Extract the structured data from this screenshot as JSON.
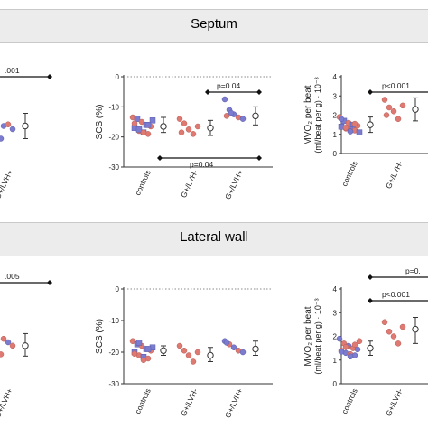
{
  "sections": [
    {
      "title": "Septum"
    },
    {
      "title": "Lateral wall"
    }
  ],
  "colors": {
    "blue": "#7b7ccf",
    "red": "#df7a72",
    "open": "#ffffff",
    "ink": "#222222"
  },
  "chart_data": [
    {
      "type": "scatter",
      "section": "Septum",
      "title": "",
      "ylabel": "",
      "categories": [
        "",
        "G+/LVH+"
      ],
      "clipped_left": true,
      "ylim": [
        0,
        3
      ],
      "annotations": [
        {
          "text": ".001"
        }
      ],
      "series": [
        {
          "group": "G+/LVH-",
          "points": [
            {
              "y": 1.6,
              "c": "red"
            },
            {
              "y": 1.3,
              "c": "blue"
            }
          ]
        },
        {
          "group": "G+/LVH+",
          "points": [
            {
              "y": 1.6,
              "c": "red"
            },
            {
              "y": 1.55,
              "c": "blue"
            },
            {
              "y": 1.3,
              "c": "blue"
            },
            {
              "y": 1.35,
              "c": "red"
            },
            {
              "y": 1.2,
              "c": "blue"
            },
            {
              "y": 1.0,
              "c": "red"
            },
            {
              "y": 0.9,
              "c": "blue"
            }
          ]
        }
      ],
      "summary": [
        {
          "group": "G+/LVH-",
          "mean": 1.3,
          "lo": 0.8,
          "hi": 1.8
        },
        {
          "group": "G+/LVH+",
          "mean": 1.3,
          "lo": 0.9,
          "hi": 1.7
        }
      ]
    },
    {
      "type": "scatter",
      "section": "Septum",
      "title": "",
      "ylabel": "SCS (%)",
      "categories": [
        "controls",
        "G+/LVH-",
        "G+/LVH+"
      ],
      "yticks": [
        "0",
        "-10",
        "-20",
        "-30"
      ],
      "ylim": [
        -30,
        0
      ],
      "annotations": [
        {
          "text": "p=0.04"
        },
        {
          "text": "p=0.04"
        }
      ],
      "series": [
        {
          "group": "controls",
          "points": [
            {
              "y": -13.5,
              "c": "red"
            },
            {
              "y": -14.0,
              "c": "blue"
            },
            {
              "y": -15.0,
              "c": "red"
            },
            {
              "y": -16.0,
              "c": "blue"
            },
            {
              "y": -16.5,
              "c": "red"
            },
            {
              "y": -17.0,
              "c": "blue"
            },
            {
              "y": -18.0,
              "c": "red"
            },
            {
              "y": -18.5,
              "c": "blue"
            },
            {
              "y": -19.0,
              "c": "red"
            },
            {
              "y": -14.5,
              "c": "blue"
            },
            {
              "y": -15.5,
              "c": "red"
            },
            {
              "y": -17.5,
              "c": "blue"
            },
            {
              "y": -18.5,
              "c": "red"
            },
            {
              "y": -16.0,
              "c": "blue"
            }
          ]
        },
        {
          "group": "G+/LVH-",
          "points": [
            {
              "y": -14.0,
              "c": "red"
            },
            {
              "y": -15.5,
              "c": "red"
            },
            {
              "y": -17.5,
              "c": "red"
            },
            {
              "y": -19.0,
              "c": "red"
            },
            {
              "y": -16.5,
              "c": "red"
            },
            {
              "y": -18.5,
              "c": "red"
            }
          ]
        },
        {
          "group": "G+/LVH+",
          "points": [
            {
              "y": -7.5,
              "c": "blue"
            },
            {
              "y": -11.0,
              "c": "blue"
            },
            {
              "y": -12.5,
              "c": "blue"
            },
            {
              "y": -13.5,
              "c": "red"
            },
            {
              "y": -14.0,
              "c": "blue"
            },
            {
              "y": -13.0,
              "c": "red"
            },
            {
              "y": -12.0,
              "c": "blue"
            }
          ]
        }
      ],
      "summary": [
        {
          "group": "controls",
          "mean": -16.5,
          "lo": -18.5,
          "hi": -13.5
        },
        {
          "group": "G+/LVH-",
          "mean": -17.0,
          "lo": -19.5,
          "hi": -14.5
        },
        {
          "group": "G+/LVH+",
          "mean": -13.0,
          "lo": -16.0,
          "hi": -10.0
        }
      ]
    },
    {
      "type": "scatter",
      "section": "Septum",
      "title": "",
      "ylabel": "MVO₂ per beat",
      "ylabel2": "(ml/beat per g) · 10⁻³",
      "categories": [
        "controls",
        "G+/LVH-",
        "G+/LVH+"
      ],
      "clipped_right": true,
      "yticks": [
        "0",
        "1",
        "2",
        "3",
        "4"
      ],
      "ylim": [
        0,
        4
      ],
      "annotations": [
        {
          "text": "p<0.001"
        }
      ],
      "series": [
        {
          "group": "controls",
          "points": [
            {
              "y": 1.9,
              "c": "red"
            },
            {
              "y": 1.7,
              "c": "blue"
            },
            {
              "y": 1.6,
              "c": "red"
            },
            {
              "y": 1.5,
              "c": "blue"
            },
            {
              "y": 1.45,
              "c": "red"
            },
            {
              "y": 1.4,
              "c": "blue"
            },
            {
              "y": 1.3,
              "c": "red"
            },
            {
              "y": 1.25,
              "c": "blue"
            },
            {
              "y": 1.2,
              "c": "red"
            },
            {
              "y": 1.1,
              "c": "blue"
            },
            {
              "y": 1.8,
              "c": "blue"
            },
            {
              "y": 1.35,
              "c": "red"
            },
            {
              "y": 1.15,
              "c": "blue"
            },
            {
              "y": 1.55,
              "c": "red"
            }
          ]
        },
        {
          "group": "G+/LVH-",
          "points": [
            {
              "y": 2.8,
              "c": "red"
            },
            {
              "y": 2.4,
              "c": "red"
            },
            {
              "y": 2.2,
              "c": "red"
            },
            {
              "y": 1.8,
              "c": "red"
            },
            {
              "y": 2.5,
              "c": "red"
            },
            {
              "y": 2.0,
              "c": "red"
            }
          ]
        },
        {
          "group": "G+/LVH+",
          "points": [
            {
              "y": 3.0,
              "c": "blue"
            }
          ]
        }
      ],
      "summary": [
        {
          "group": "controls",
          "mean": 1.5,
          "lo": 1.1,
          "hi": 1.9
        },
        {
          "group": "G+/LVH-",
          "mean": 2.3,
          "lo": 1.7,
          "hi": 2.9
        }
      ]
    },
    {
      "type": "scatter",
      "section": "Lateral wall",
      "title": "",
      "ylabel": "",
      "categories": [
        "",
        "G+/LVH+"
      ],
      "clipped_left": true,
      "ylim": [
        0,
        3
      ],
      "annotations": [
        {
          "text": ".005"
        }
      ],
      "series": [
        {
          "group": "G+/LVH-",
          "points": [
            {
              "y": 1.3,
              "c": "red"
            },
            {
              "y": 1.0,
              "c": "blue"
            }
          ]
        },
        {
          "group": "G+/LVH+",
          "points": [
            {
              "y": 1.5,
              "c": "red"
            },
            {
              "y": 1.45,
              "c": "blue"
            },
            {
              "y": 1.3,
              "c": "red"
            },
            {
              "y": 1.2,
              "c": "blue"
            },
            {
              "y": 1.1,
              "c": "red"
            },
            {
              "y": 1.0,
              "c": "blue"
            },
            {
              "y": 0.85,
              "c": "red"
            }
          ]
        }
      ],
      "summary": [
        {
          "group": "G+/LVH-",
          "mean": 1.1,
          "lo": 0.6,
          "hi": 1.5
        },
        {
          "group": "G+/LVH+",
          "mean": 1.1,
          "lo": 0.8,
          "hi": 1.45
        }
      ]
    },
    {
      "type": "scatter",
      "section": "Lateral wall",
      "title": "",
      "ylabel": "SCS (%)",
      "categories": [
        "controls",
        "G+/LVH-",
        "G+/LVH+"
      ],
      "yticks": [
        "0",
        "-10",
        "-20",
        "-30"
      ],
      "ylim": [
        -30,
        0
      ],
      "annotations": [],
      "series": [
        {
          "group": "controls",
          "points": [
            {
              "y": -16.5,
              "c": "red"
            },
            {
              "y": -17.5,
              "c": "blue"
            },
            {
              "y": -18.0,
              "c": "red"
            },
            {
              "y": -19.0,
              "c": "blue"
            },
            {
              "y": -19.5,
              "c": "red"
            },
            {
              "y": -20.0,
              "c": "blue"
            },
            {
              "y": -21.0,
              "c": "red"
            },
            {
              "y": -21.5,
              "c": "blue"
            },
            {
              "y": -22.0,
              "c": "red"
            },
            {
              "y": -18.5,
              "c": "blue"
            },
            {
              "y": -20.5,
              "c": "red"
            },
            {
              "y": -17.0,
              "c": "blue"
            },
            {
              "y": -22.5,
              "c": "red"
            },
            {
              "y": -19.0,
              "c": "blue"
            }
          ]
        },
        {
          "group": "G+/LVH-",
          "points": [
            {
              "y": -18.0,
              "c": "red"
            },
            {
              "y": -19.5,
              "c": "red"
            },
            {
              "y": -21.0,
              "c": "red"
            },
            {
              "y": -23.0,
              "c": "red"
            },
            {
              "y": -20.0,
              "c": "red"
            }
          ]
        },
        {
          "group": "G+/LVH+",
          "points": [
            {
              "y": -16.5,
              "c": "blue"
            },
            {
              "y": -17.5,
              "c": "red"
            },
            {
              "y": -18.5,
              "c": "blue"
            },
            {
              "y": -19.5,
              "c": "red"
            },
            {
              "y": -20.0,
              "c": "blue"
            },
            {
              "y": -17.0,
              "c": "blue"
            }
          ]
        }
      ],
      "summary": [
        {
          "group": "controls",
          "mean": -19.5,
          "lo": -21.0,
          "hi": -18.0
        },
        {
          "group": "G+/LVH-",
          "mean": -21.0,
          "lo": -23.0,
          "hi": -18.5
        },
        {
          "group": "G+/LVH+",
          "mean": -19.0,
          "lo": -21.0,
          "hi": -16.5
        }
      ]
    },
    {
      "type": "scatter",
      "section": "Lateral wall",
      "title": "",
      "ylabel": "MVO₂ per beat",
      "ylabel2": "(ml/beat per g) · 10⁻³",
      "categories": [
        "controls",
        "G+/LVH-",
        "G+/LVH+"
      ],
      "clipped_right": true,
      "yticks": [
        "0",
        "1",
        "2",
        "3",
        "4"
      ],
      "ylim": [
        0,
        4
      ],
      "annotations": [
        {
          "text": "p<0.001"
        },
        {
          "text": "p=0."
        }
      ],
      "series": [
        {
          "group": "controls",
          "points": [
            {
              "y": 1.9,
              "c": "blue"
            },
            {
              "y": 1.7,
              "c": "red"
            },
            {
              "y": 1.6,
              "c": "blue"
            },
            {
              "y": 1.5,
              "c": "red"
            },
            {
              "y": 1.45,
              "c": "blue"
            },
            {
              "y": 1.4,
              "c": "red"
            },
            {
              "y": 1.3,
              "c": "blue"
            },
            {
              "y": 1.25,
              "c": "red"
            },
            {
              "y": 1.2,
              "c": "blue"
            },
            {
              "y": 1.8,
              "c": "red"
            },
            {
              "y": 1.35,
              "c": "blue"
            },
            {
              "y": 1.55,
              "c": "red"
            },
            {
              "y": 1.15,
              "c": "blue"
            },
            {
              "y": 1.65,
              "c": "red"
            }
          ]
        },
        {
          "group": "G+/LVH-",
          "points": [
            {
              "y": 2.6,
              "c": "red"
            },
            {
              "y": 2.2,
              "c": "red"
            },
            {
              "y": 2.0,
              "c": "red"
            },
            {
              "y": 1.7,
              "c": "red"
            },
            {
              "y": 2.4,
              "c": "red"
            }
          ]
        },
        {
          "group": "G+/LVH+",
          "points": [
            {
              "y": 2.7,
              "c": "blue"
            }
          ]
        }
      ],
      "summary": [
        {
          "group": "controls",
          "mean": 1.5,
          "lo": 1.2,
          "hi": 1.8
        },
        {
          "group": "G+/LVH-",
          "mean": 2.3,
          "lo": 1.7,
          "hi": 2.8
        }
      ]
    }
  ]
}
